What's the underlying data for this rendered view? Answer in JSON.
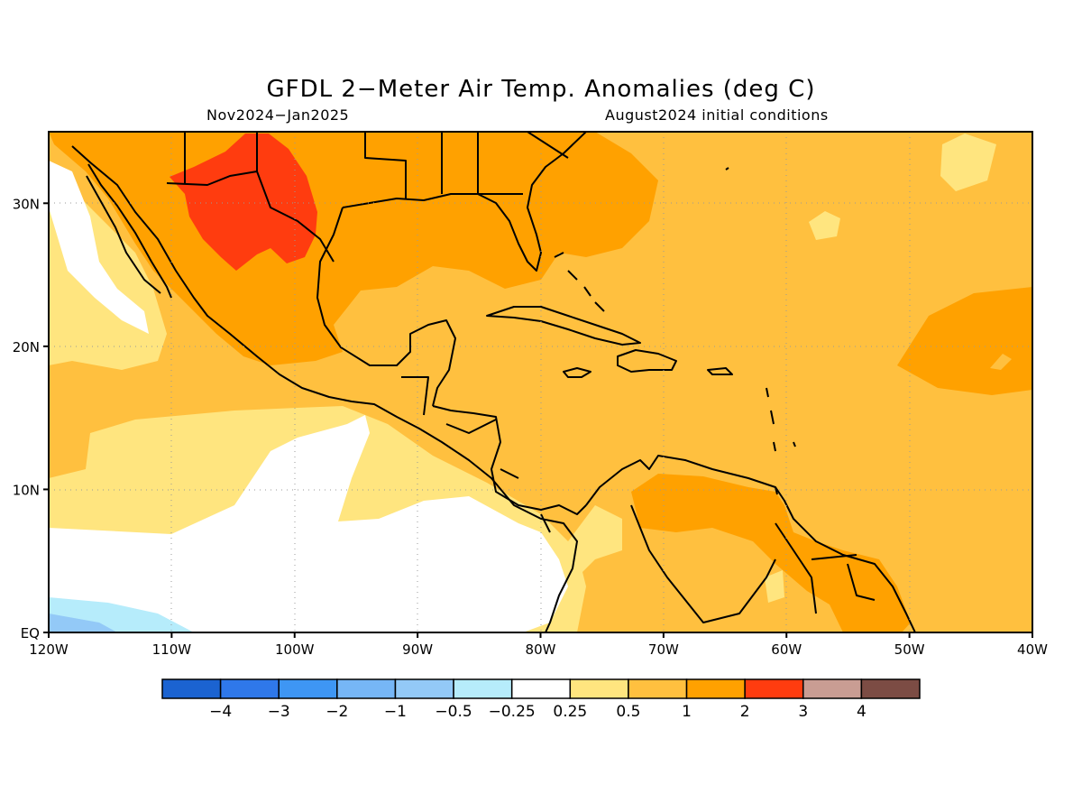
{
  "title": "GFDL 2−Meter Air Temp. Anomalies (deg C)",
  "subtitle_left": "Nov2024−Jan2025",
  "subtitle_right": "August2024 initial conditions",
  "axes": {
    "lon_labels": [
      "120W",
      "110W",
      "100W",
      "90W",
      "80W",
      "70W",
      "60W",
      "50W",
      "40W"
    ],
    "lat_labels": [
      "EQ",
      "10N",
      "20N",
      "30N"
    ],
    "lon_range": [
      -120,
      -40
    ],
    "lat_range": [
      0,
      35
    ],
    "grid": "dotted"
  },
  "colorbar": {
    "colors": [
      "#1b63d1",
      "#2f78ea",
      "#3e96f4",
      "#76b6f6",
      "#93c9f7",
      "#b6ecfb",
      "#ffffff",
      "#ffe57f",
      "#ffc03f",
      "#ffa100",
      "#ff3c0f",
      "#c99d93",
      "#7c4c44"
    ],
    "labels": [
      "−4",
      "−3",
      "−2",
      "−1",
      "−0.5",
      "−0.25",
      "0.25",
      "0.5",
      "1",
      "2",
      "3",
      "4"
    ]
  }
}
